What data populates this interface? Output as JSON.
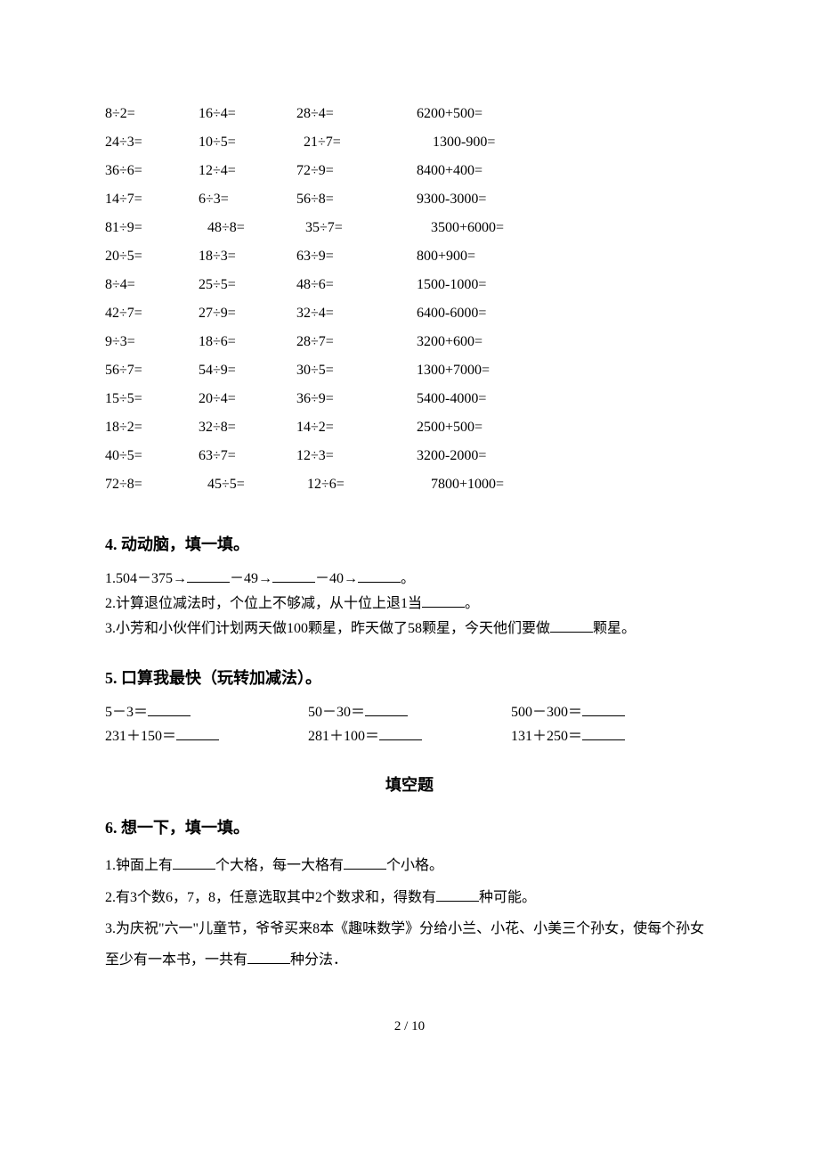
{
  "equations": {
    "rows": [
      {
        "c1": "8÷2=",
        "c2": "16÷4=",
        "c3": "28÷4=",
        "c4": "6200+500="
      },
      {
        "c1": "24÷3=",
        "c2": "10÷5=",
        "c3": "21÷7=",
        "c4": "1300-900="
      },
      {
        "c1": "36÷6=",
        "c2": "12÷4=",
        "c3": "72÷9=",
        "c4": "8400+400="
      },
      {
        "c1": "14÷7=",
        "c2": "6÷3=",
        "c3": "56÷8=",
        "c4": "9300-3000="
      },
      {
        "c1": "81÷9=",
        "c2": "48÷8=",
        "c3": "35÷7=",
        "c4": "3500+6000="
      },
      {
        "c1": "20÷5=",
        "c2": "18÷3=",
        "c3": "63÷9=",
        "c4": "800+900="
      },
      {
        "c1": "8÷4=",
        "c2": "25÷5=",
        "c3": "48÷6=",
        "c4": "1500-1000="
      },
      {
        "c1": "42÷7=",
        "c2": "27÷9=",
        "c3": "32÷4=",
        "c4": "6400-6000="
      },
      {
        "c1": "9÷3=",
        "c2": "18÷6=",
        "c3": "28÷7=",
        "c4": "3200+600="
      },
      {
        "c1": "56÷7=",
        "c2": "54÷9=",
        "c3": "30÷5=",
        "c4": "1300+7000="
      },
      {
        "c1": "15÷5=",
        "c2": "20÷4=",
        "c3": "36÷9=",
        "c4": "5400-4000="
      },
      {
        "c1": "18÷2=",
        "c2": "32÷8=",
        "c3": "14÷2=",
        "c4": "2500+500="
      },
      {
        "c1": "40÷5=",
        "c2": "63÷7=",
        "c3": "12÷3=",
        "c4": "3200-2000="
      },
      {
        "c1": "72÷8=",
        "c2": "45÷5=",
        "c3": "12÷6=",
        "c4": "7800+1000="
      }
    ]
  },
  "q4": {
    "header": "4.  动动脑，填一填。",
    "item1_a": "1.504－375→",
    "item1_b": "－49→",
    "item1_c": "－40→",
    "item1_d": "。",
    "item2_a": "2.计算退位减法时，个位上不够减，从十位上退1当",
    "item2_b": "。",
    "item3_a": "3.小芳和小伙伴们计划两天做100颗星，昨天做了58颗星，今天他们要做",
    "item3_b": "颗星。"
  },
  "q5": {
    "header": "5.  口算我最快（玩转加减法）。",
    "r1c1": "5－3＝",
    "r1c2": "50－30＝",
    "r1c3": "500－300＝",
    "r2c1": "231＋150＝",
    "r2c2": "281＋100＝",
    "r2c3": "131＋250＝"
  },
  "fillHeading": "填空题",
  "q6": {
    "header": "6.  想一下，填一填。",
    "item1_a": "1.钟面上有",
    "item1_b": "个大格，每一大格有",
    "item1_c": "个小格。",
    "item2_a": "2.有3个数6，7，8，任意选取其中2个数求和，得数有",
    "item2_b": "种可能。",
    "item3_a": "3.为庆祝\"六一\"儿童节，爷爷买来8本《趣味数学》分给小兰、小花、小美三个孙女，使每个孙女至少有一本书，一共有",
    "item3_b": "种分法．"
  },
  "pageNum": "2 / 10"
}
